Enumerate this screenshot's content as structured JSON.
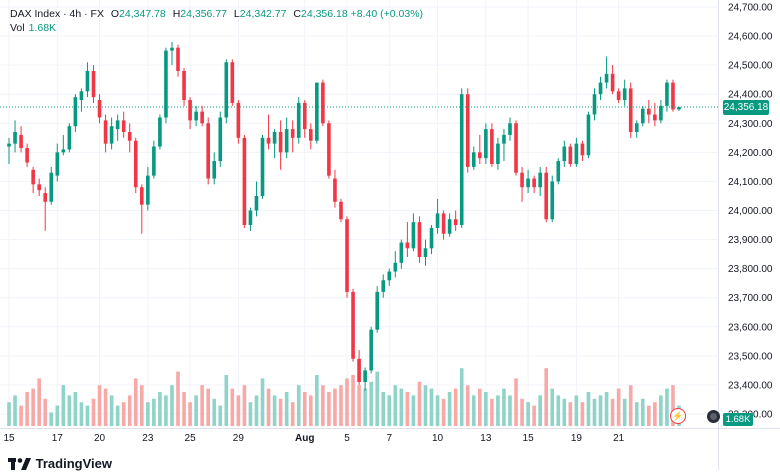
{
  "legend": {
    "symbol": "DAX Index · 4h · FX",
    "o_label": "O",
    "o_value": "24,347.78",
    "h_label": "H",
    "h_value": "24,356.77",
    "l_label": "L",
    "l_value": "24,342.77",
    "c_label": "C",
    "c_value": "24,356.18",
    "change": "+8.40 (+0.03%)",
    "vol_label": "Vol",
    "vol_value": "1.68K"
  },
  "price_tag": "24,356.18",
  "volume_tag": "1.68K",
  "brand": "TradingView",
  "colors": {
    "up": "#089981",
    "down": "#f23645",
    "up_volume": "#8fd3c9",
    "down_volume": "#f7a9a7",
    "grid": "#f0f3fa"
  },
  "chart_data": {
    "type": "candlestick",
    "y_ticks": [
      "24,700.00",
      "24,600.00",
      "24,500.00",
      "24,400.00",
      "24,300.00",
      "24,200.00",
      "24,100.00",
      "24,000.00",
      "23,900.00",
      "23,800.00",
      "23,700.00",
      "23,600.00",
      "23,500.00",
      "23,400.00",
      "23,300.00"
    ],
    "y_tick_values": [
      24700,
      24600,
      24500,
      24400,
      24300,
      24200,
      24100,
      24000,
      23900,
      23800,
      23700,
      23600,
      23500,
      23400,
      23300
    ],
    "x_labels": [
      "15",
      "17",
      "20",
      "23",
      "25",
      "29",
      "Aug",
      "5",
      "7",
      "10",
      "13",
      "15",
      "19",
      "21"
    ],
    "x_label_index": [
      0,
      8,
      15,
      23,
      30,
      38,
      49,
      56,
      63,
      71,
      79,
      86,
      94,
      101
    ],
    "ylim": [
      23290,
      24710
    ],
    "last_price": 24356.18,
    "candles": [
      {
        "o": 24220,
        "h": 24250,
        "l": 24160,
        "c": 24230
      },
      {
        "o": 24230,
        "h": 24310,
        "l": 24200,
        "c": 24270
      },
      {
        "o": 24260,
        "h": 24290,
        "l": 24200,
        "c": 24215
      },
      {
        "o": 24215,
        "h": 24230,
        "l": 24150,
        "c": 24165
      },
      {
        "o": 24140,
        "h": 24150,
        "l": 24060,
        "c": 24090
      },
      {
        "o": 24090,
        "h": 24110,
        "l": 24050,
        "c": 24070
      },
      {
        "o": 24060,
        "h": 24080,
        "l": 23930,
        "c": 24030
      },
      {
        "o": 24030,
        "h": 24150,
        "l": 24020,
        "c": 24130
      },
      {
        "o": 24120,
        "h": 24230,
        "l": 24100,
        "c": 24200
      },
      {
        "o": 24200,
        "h": 24260,
        "l": 24190,
        "c": 24210
      },
      {
        "o": 24210,
        "h": 24300,
        "l": 24200,
        "c": 24290
      },
      {
        "o": 24290,
        "h": 24400,
        "l": 24270,
        "c": 24390
      },
      {
        "o": 24380,
        "h": 24420,
        "l": 24340,
        "c": 24410
      },
      {
        "o": 24410,
        "h": 24510,
        "l": 24390,
        "c": 24480
      },
      {
        "o": 24480,
        "h": 24500,
        "l": 24370,
        "c": 24390
      },
      {
        "o": 24380,
        "h": 24400,
        "l": 24300,
        "c": 24320
      },
      {
        "o": 24310,
        "h": 24330,
        "l": 24200,
        "c": 24230
      },
      {
        "o": 24230,
        "h": 24320,
        "l": 24210,
        "c": 24290
      },
      {
        "o": 24280,
        "h": 24330,
        "l": 24240,
        "c": 24310
      },
      {
        "o": 24310,
        "h": 24340,
        "l": 24250,
        "c": 24270
      },
      {
        "o": 24270,
        "h": 24300,
        "l": 24200,
        "c": 24240
      },
      {
        "o": 24240,
        "h": 24250,
        "l": 24060,
        "c": 24080
      },
      {
        "o": 24080,
        "h": 24090,
        "l": 23920,
        "c": 24020
      },
      {
        "o": 24020,
        "h": 24150,
        "l": 24000,
        "c": 24120
      },
      {
        "o": 24120,
        "h": 24240,
        "l": 24110,
        "c": 24220
      },
      {
        "o": 24220,
        "h": 24330,
        "l": 24210,
        "c": 24320
      },
      {
        "o": 24320,
        "h": 24560,
        "l": 24300,
        "c": 24550
      },
      {
        "o": 24550,
        "h": 24580,
        "l": 24500,
        "c": 24560
      },
      {
        "o": 24560,
        "h": 24570,
        "l": 24460,
        "c": 24480
      },
      {
        "o": 24480,
        "h": 24490,
        "l": 24360,
        "c": 24380
      },
      {
        "o": 24380,
        "h": 24390,
        "l": 24280,
        "c": 24310
      },
      {
        "o": 24310,
        "h": 24360,
        "l": 24290,
        "c": 24340
      },
      {
        "o": 24340,
        "h": 24360,
        "l": 24290,
        "c": 24300
      },
      {
        "o": 24300,
        "h": 24320,
        "l": 24090,
        "c": 24110
      },
      {
        "o": 24110,
        "h": 24200,
        "l": 24090,
        "c": 24170
      },
      {
        "o": 24170,
        "h": 24340,
        "l": 24150,
        "c": 24320
      },
      {
        "o": 24320,
        "h": 24520,
        "l": 24300,
        "c": 24510
      },
      {
        "o": 24510,
        "h": 24520,
        "l": 24360,
        "c": 24370
      },
      {
        "o": 24370,
        "h": 24380,
        "l": 24230,
        "c": 24250
      },
      {
        "o": 24250,
        "h": 24260,
        "l": 23940,
        "c": 23950
      },
      {
        "o": 23950,
        "h": 24010,
        "l": 23930,
        "c": 24000
      },
      {
        "o": 24000,
        "h": 24100,
        "l": 23980,
        "c": 24050
      },
      {
        "o": 24050,
        "h": 24260,
        "l": 24040,
        "c": 24250
      },
      {
        "o": 24250,
        "h": 24330,
        "l": 24210,
        "c": 24230
      },
      {
        "o": 24230,
        "h": 24280,
        "l": 24180,
        "c": 24270
      },
      {
        "o": 24270,
        "h": 24310,
        "l": 24140,
        "c": 24200
      },
      {
        "o": 24200,
        "h": 24320,
        "l": 24180,
        "c": 24280
      },
      {
        "o": 24280,
        "h": 24310,
        "l": 24200,
        "c": 24250
      },
      {
        "o": 24250,
        "h": 24390,
        "l": 24230,
        "c": 24370
      },
      {
        "o": 24370,
        "h": 24380,
        "l": 24250,
        "c": 24280
      },
      {
        "o": 24280,
        "h": 24300,
        "l": 24210,
        "c": 24240
      },
      {
        "o": 24240,
        "h": 24440,
        "l": 24230,
        "c": 24440
      },
      {
        "o": 24440,
        "h": 24450,
        "l": 24290,
        "c": 24300
      },
      {
        "o": 24300,
        "h": 24310,
        "l": 24110,
        "c": 24120
      },
      {
        "o": 24110,
        "h": 24140,
        "l": 24010,
        "c": 24030
      },
      {
        "o": 24030,
        "h": 24040,
        "l": 23960,
        "c": 23970
      },
      {
        "o": 23970,
        "h": 23980,
        "l": 23700,
        "c": 23720
      },
      {
        "o": 23720,
        "h": 23730,
        "l": 23480,
        "c": 23490
      },
      {
        "o": 23490,
        "h": 23520,
        "l": 23400,
        "c": 23410
      },
      {
        "o": 23410,
        "h": 23460,
        "l": 23380,
        "c": 23450
      },
      {
        "o": 23450,
        "h": 23600,
        "l": 23440,
        "c": 23590
      },
      {
        "o": 23590,
        "h": 23740,
        "l": 23580,
        "c": 23720
      },
      {
        "o": 23720,
        "h": 23780,
        "l": 23700,
        "c": 23760
      },
      {
        "o": 23760,
        "h": 23800,
        "l": 23740,
        "c": 23790
      },
      {
        "o": 23790,
        "h": 23860,
        "l": 23770,
        "c": 23820
      },
      {
        "o": 23820,
        "h": 23900,
        "l": 23800,
        "c": 23890
      },
      {
        "o": 23890,
        "h": 23960,
        "l": 23840,
        "c": 23870
      },
      {
        "o": 23870,
        "h": 23990,
        "l": 23860,
        "c": 23960
      },
      {
        "o": 23960,
        "h": 23980,
        "l": 23820,
        "c": 23840
      },
      {
        "o": 23840,
        "h": 23900,
        "l": 23810,
        "c": 23870
      },
      {
        "o": 23870,
        "h": 23950,
        "l": 23850,
        "c": 23940
      },
      {
        "o": 23940,
        "h": 24040,
        "l": 23920,
        "c": 23990
      },
      {
        "o": 23990,
        "h": 24000,
        "l": 23900,
        "c": 23920
      },
      {
        "o": 23920,
        "h": 23990,
        "l": 23910,
        "c": 23970
      },
      {
        "o": 23970,
        "h": 24000,
        "l": 23930,
        "c": 23950
      },
      {
        "o": 23950,
        "h": 24420,
        "l": 23940,
        "c": 24400
      },
      {
        "o": 24400,
        "h": 24420,
        "l": 24130,
        "c": 24150
      },
      {
        "o": 24150,
        "h": 24220,
        "l": 24140,
        "c": 24200
      },
      {
        "o": 24200,
        "h": 24260,
        "l": 24160,
        "c": 24180
      },
      {
        "o": 24180,
        "h": 24300,
        "l": 24160,
        "c": 24280
      },
      {
        "o": 24280,
        "h": 24300,
        "l": 24150,
        "c": 24160
      },
      {
        "o": 24160,
        "h": 24250,
        "l": 24140,
        "c": 24230
      },
      {
        "o": 24230,
        "h": 24280,
        "l": 24170,
        "c": 24260
      },
      {
        "o": 24260,
        "h": 24320,
        "l": 24240,
        "c": 24300
      },
      {
        "o": 24300,
        "h": 24310,
        "l": 24120,
        "c": 24130
      },
      {
        "o": 24130,
        "h": 24150,
        "l": 24030,
        "c": 24080
      },
      {
        "o": 24080,
        "h": 24140,
        "l": 24060,
        "c": 24110
      },
      {
        "o": 24110,
        "h": 24120,
        "l": 24060,
        "c": 24080
      },
      {
        "o": 24080,
        "h": 24150,
        "l": 24050,
        "c": 24130
      },
      {
        "o": 24130,
        "h": 24150,
        "l": 23960,
        "c": 23970
      },
      {
        "o": 23970,
        "h": 24120,
        "l": 23960,
        "c": 24100
      },
      {
        "o": 24100,
        "h": 24180,
        "l": 24090,
        "c": 24170
      },
      {
        "o": 24170,
        "h": 24240,
        "l": 24150,
        "c": 24220
      },
      {
        "o": 24220,
        "h": 24230,
        "l": 24150,
        "c": 24160
      },
      {
        "o": 24160,
        "h": 24250,
        "l": 24150,
        "c": 24230
      },
      {
        "o": 24230,
        "h": 24240,
        "l": 24170,
        "c": 24190
      },
      {
        "o": 24190,
        "h": 24340,
        "l": 24180,
        "c": 24330
      },
      {
        "o": 24330,
        "h": 24420,
        "l": 24310,
        "c": 24400
      },
      {
        "o": 24400,
        "h": 24460,
        "l": 24380,
        "c": 24440
      },
      {
        "o": 24440,
        "h": 24530,
        "l": 24420,
        "c": 24470
      },
      {
        "o": 24470,
        "h": 24500,
        "l": 24400,
        "c": 24410
      },
      {
        "o": 24410,
        "h": 24420,
        "l": 24370,
        "c": 24380
      },
      {
        "o": 24380,
        "h": 24450,
        "l": 24360,
        "c": 24420
      },
      {
        "o": 24420,
        "h": 24440,
        "l": 24250,
        "c": 24270
      },
      {
        "o": 24270,
        "h": 24310,
        "l": 24250,
        "c": 24300
      },
      {
        "o": 24300,
        "h": 24360,
        "l": 24290,
        "c": 24350
      },
      {
        "o": 24350,
        "h": 24380,
        "l": 24300,
        "c": 24330
      },
      {
        "o": 24330,
        "h": 24370,
        "l": 24290,
        "c": 24310
      },
      {
        "o": 24310,
        "h": 24380,
        "l": 24300,
        "c": 24360
      },
      {
        "o": 24360,
        "h": 24450,
        "l": 24340,
        "c": 24440
      },
      {
        "o": 24440,
        "h": 24450,
        "l": 24340,
        "c": 24347.78
      },
      {
        "o": 24347.78,
        "h": 24356.77,
        "l": 24342.77,
        "c": 24356.18
      }
    ],
    "volume_max": 1.0,
    "volumes": [
      0.35,
      0.45,
      0.3,
      0.5,
      0.55,
      0.7,
      0.4,
      0.2,
      0.3,
      0.6,
      0.45,
      0.5,
      0.35,
      0.3,
      0.4,
      0.6,
      0.55,
      0.45,
      0.3,
      0.35,
      0.45,
      0.7,
      0.6,
      0.35,
      0.4,
      0.5,
      0.45,
      0.6,
      0.8,
      0.5,
      0.35,
      0.45,
      0.6,
      0.55,
      0.4,
      0.3,
      0.75,
      0.55,
      0.45,
      0.6,
      0.35,
      0.45,
      0.7,
      0.55,
      0.45,
      0.4,
      0.5,
      0.35,
      0.6,
      0.5,
      0.45,
      0.75,
      0.6,
      0.5,
      0.55,
      0.6,
      0.7,
      0.75,
      0.6,
      0.55,
      0.65,
      0.8,
      0.5,
      0.45,
      0.6,
      0.55,
      0.5,
      0.45,
      0.65,
      0.6,
      0.55,
      0.45,
      0.4,
      0.5,
      0.55,
      0.85,
      0.6,
      0.45,
      0.55,
      0.5,
      0.4,
      0.45,
      0.55,
      0.45,
      0.7,
      0.4,
      0.35,
      0.3,
      0.45,
      0.85,
      0.55,
      0.45,
      0.4,
      0.35,
      0.45,
      0.35,
      0.5,
      0.4,
      0.45,
      0.5,
      0.4,
      0.55,
      0.4,
      0.6,
      0.35,
      0.4,
      0.3,
      0.35,
      0.45,
      0.55,
      0.6,
      0.3
    ]
  }
}
